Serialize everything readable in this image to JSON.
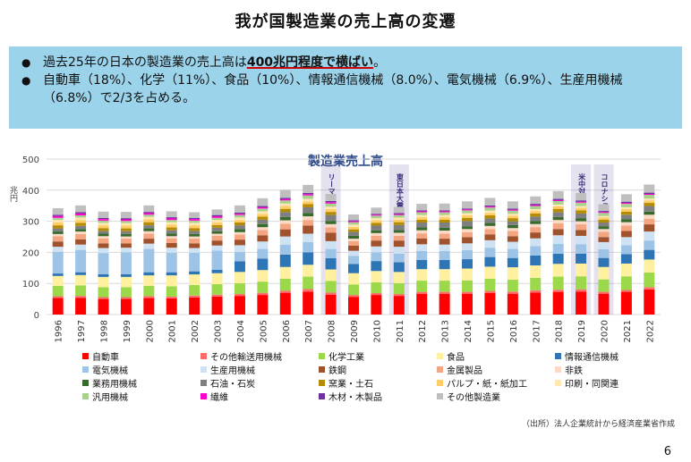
{
  "slide": {
    "title": "我が国製造業の売上高の変遷",
    "bullets": [
      {
        "pre": "過去25年の日本の製造業の売上高は",
        "em": "400兆円程度で横ばい",
        "post": "。"
      },
      {
        "pre": "自動車（18%）、化学（11%）、食品（10%）、情報通信機械（8.0%）、電気機械（6.9%）、生産用機械（6.8%）で2/3を占める。",
        "em": "",
        "post": ""
      }
    ],
    "source": "（出所）法人企業統計から経済産業省作成",
    "page_number": "6"
  },
  "chart_data": {
    "type": "bar",
    "stacked": true,
    "title": "製造業売上高",
    "ylabel": "兆円",
    "ylim": [
      0,
      500
    ],
    "yticks": [
      0,
      100,
      200,
      300,
      400,
      500
    ],
    "categories": [
      "1996",
      "1997",
      "1998",
      "1999",
      "2000",
      "2001",
      "2002",
      "2003",
      "2004",
      "2005",
      "2006",
      "2007",
      "2008",
      "2009",
      "2010",
      "2011",
      "2012",
      "2013",
      "2014",
      "2015",
      "2016",
      "2017",
      "2018",
      "2019",
      "2020",
      "2021",
      "2022"
    ],
    "events": [
      {
        "category": "2008",
        "label": "リーマンショック"
      },
      {
        "category": "2011",
        "label": "東日本大震災"
      },
      {
        "category": "2019",
        "label": "米中対立"
      },
      {
        "category": "2020",
        "label": "コロナショック"
      }
    ],
    "colors": {
      "gridline": "#d9d9d9",
      "event_band": "#6a5fa8",
      "title": "#2e4b8a",
      "accent_underline": "#d00000",
      "box": "#9bd3ea"
    },
    "series": [
      {
        "name": "自動車",
        "color": "#ff0000",
        "values": [
          53,
          54,
          50,
          50,
          53,
          52,
          55,
          58,
          60,
          63,
          70,
          74,
          64,
          57,
          63,
          60,
          67,
          67,
          67,
          69,
          67,
          71,
          73,
          74,
          67,
          73,
          81
        ]
      },
      {
        "name": "その他輸送用機械",
        "color": "#ff6b6b",
        "values": [
          6,
          6,
          6,
          6,
          6,
          6,
          6,
          6,
          6,
          7,
          7,
          8,
          7,
          6,
          6,
          6,
          6,
          6,
          6,
          7,
          7,
          7,
          7,
          7,
          6,
          6,
          7
        ]
      },
      {
        "name": "化学工業",
        "color": "#9bd94a",
        "values": [
          33,
          34,
          32,
          32,
          33,
          33,
          34,
          34,
          35,
          36,
          38,
          40,
          37,
          34,
          35,
          35,
          36,
          36,
          37,
          39,
          38,
          40,
          42,
          42,
          40,
          44,
          47
        ]
      },
      {
        "name": "食品",
        "color": "#fff0a0",
        "values": [
          32,
          33,
          33,
          33,
          34,
          35,
          34,
          35,
          36,
          37,
          38,
          38,
          37,
          36,
          36,
          36,
          37,
          37,
          38,
          39,
          40,
          40,
          41,
          41,
          40,
          41,
          42
        ]
      },
      {
        "name": "情報通信機械",
        "color": "#2e75b6",
        "values": [
          8,
          9,
          9,
          9,
          10,
          10,
          10,
          11,
          34,
          37,
          40,
          40,
          36,
          30,
          32,
          31,
          30,
          30,
          30,
          31,
          30,
          32,
          33,
          32,
          29,
          30,
          31
        ]
      },
      {
        "name": "電気機械",
        "color": "#9dc3e6",
        "values": [
          70,
          72,
          68,
          70,
          75,
          63,
          60,
          62,
          30,
          31,
          32,
          33,
          30,
          26,
          28,
          28,
          28,
          28,
          29,
          30,
          29,
          30,
          31,
          30,
          28,
          29,
          30
        ]
      },
      {
        "name": "生産用機械",
        "color": "#cfe2f3",
        "values": [
          16,
          17,
          16,
          15,
          17,
          16,
          15,
          16,
          22,
          24,
          26,
          27,
          25,
          16,
          19,
          22,
          22,
          21,
          22,
          24,
          23,
          25,
          28,
          27,
          23,
          26,
          29
        ]
      },
      {
        "name": "鉄鋼",
        "color": "#a0522d",
        "values": [
          17,
          17,
          15,
          14,
          16,
          15,
          15,
          16,
          18,
          20,
          23,
          26,
          27,
          17,
          19,
          20,
          19,
          19,
          20,
          19,
          18,
          19,
          20,
          19,
          16,
          20,
          23
        ]
      },
      {
        "name": "金属製品",
        "color": "#f4a582",
        "values": [
          17,
          17,
          16,
          15,
          16,
          15,
          15,
          15,
          16,
          17,
          18,
          18,
          17,
          14,
          15,
          15,
          16,
          16,
          16,
          17,
          17,
          17,
          18,
          18,
          17,
          17,
          18
        ]
      },
      {
        "name": "非鉄",
        "color": "#fcd9c4",
        "values": [
          7,
          8,
          7,
          7,
          8,
          7,
          7,
          7,
          8,
          9,
          11,
          12,
          11,
          8,
          9,
          10,
          10,
          10,
          10,
          10,
          9,
          10,
          11,
          10,
          9,
          11,
          13
        ]
      },
      {
        "name": "業務用機械",
        "color": "#376b2e",
        "values": [
          8,
          8,
          8,
          8,
          9,
          8,
          8,
          8,
          10,
          10,
          11,
          11,
          10,
          9,
          9,
          9,
          9,
          9,
          9,
          10,
          10,
          10,
          10,
          10,
          9,
          10,
          10
        ]
      },
      {
        "name": "石油・石炭",
        "color": "#7f7f7f",
        "values": [
          10,
          10,
          9,
          9,
          10,
          11,
          10,
          11,
          12,
          14,
          16,
          18,
          19,
          13,
          15,
          16,
          16,
          17,
          17,
          14,
          12,
          14,
          16,
          15,
          12,
          14,
          18
        ]
      },
      {
        "name": "窯業・土石",
        "color": "#b58b00",
        "values": [
          10,
          10,
          9,
          9,
          10,
          9,
          9,
          9,
          9,
          10,
          10,
          10,
          10,
          8,
          9,
          9,
          9,
          9,
          10,
          10,
          10,
          10,
          10,
          10,
          9,
          10,
          10
        ]
      },
      {
        "name": "パルプ・紙・紙加工",
        "color": "#ffcc66",
        "values": [
          9,
          9,
          9,
          9,
          9,
          9,
          9,
          8,
          8,
          9,
          9,
          9,
          9,
          8,
          8,
          8,
          8,
          8,
          8,
          8,
          8,
          8,
          8,
          8,
          7,
          8,
          8
        ]
      },
      {
        "name": "印刷・同関連",
        "color": "#ffe8b3",
        "values": [
          8,
          8,
          8,
          8,
          8,
          8,
          8,
          8,
          8,
          8,
          8,
          8,
          8,
          7,
          7,
          7,
          7,
          7,
          7,
          7,
          6,
          6,
          6,
          6,
          5,
          6,
          6
        ]
      },
      {
        "name": "汎用機械",
        "color": "#a9d18e",
        "values": [
          7,
          7,
          7,
          7,
          7,
          7,
          7,
          7,
          8,
          9,
          10,
          11,
          10,
          8,
          8,
          8,
          9,
          9,
          9,
          10,
          10,
          10,
          11,
          11,
          10,
          11,
          12
        ]
      },
      {
        "name": "繊維",
        "color": "#ff00cc",
        "values": [
          6,
          6,
          5,
          5,
          5,
          5,
          5,
          5,
          4,
          4,
          4,
          4,
          4,
          3,
          3,
          3,
          3,
          3,
          3,
          3,
          3,
          3,
          3,
          3,
          3,
          3,
          3
        ]
      },
      {
        "name": "木材・木製品",
        "color": "#7030a0",
        "values": [
          4,
          4,
          4,
          4,
          4,
          4,
          4,
          4,
          4,
          4,
          4,
          4,
          4,
          3,
          3,
          3,
          3,
          3,
          3,
          4,
          4,
          4,
          4,
          4,
          3,
          4,
          4
        ]
      },
      {
        "name": "その他製造業",
        "color": "#bfbfbf",
        "values": [
          21,
          22,
          20,
          20,
          21,
          19,
          18,
          18,
          23,
          25,
          26,
          26,
          23,
          19,
          20,
          20,
          21,
          22,
          23,
          24,
          23,
          24,
          25,
          24,
          22,
          24,
          26
        ]
      }
    ]
  }
}
